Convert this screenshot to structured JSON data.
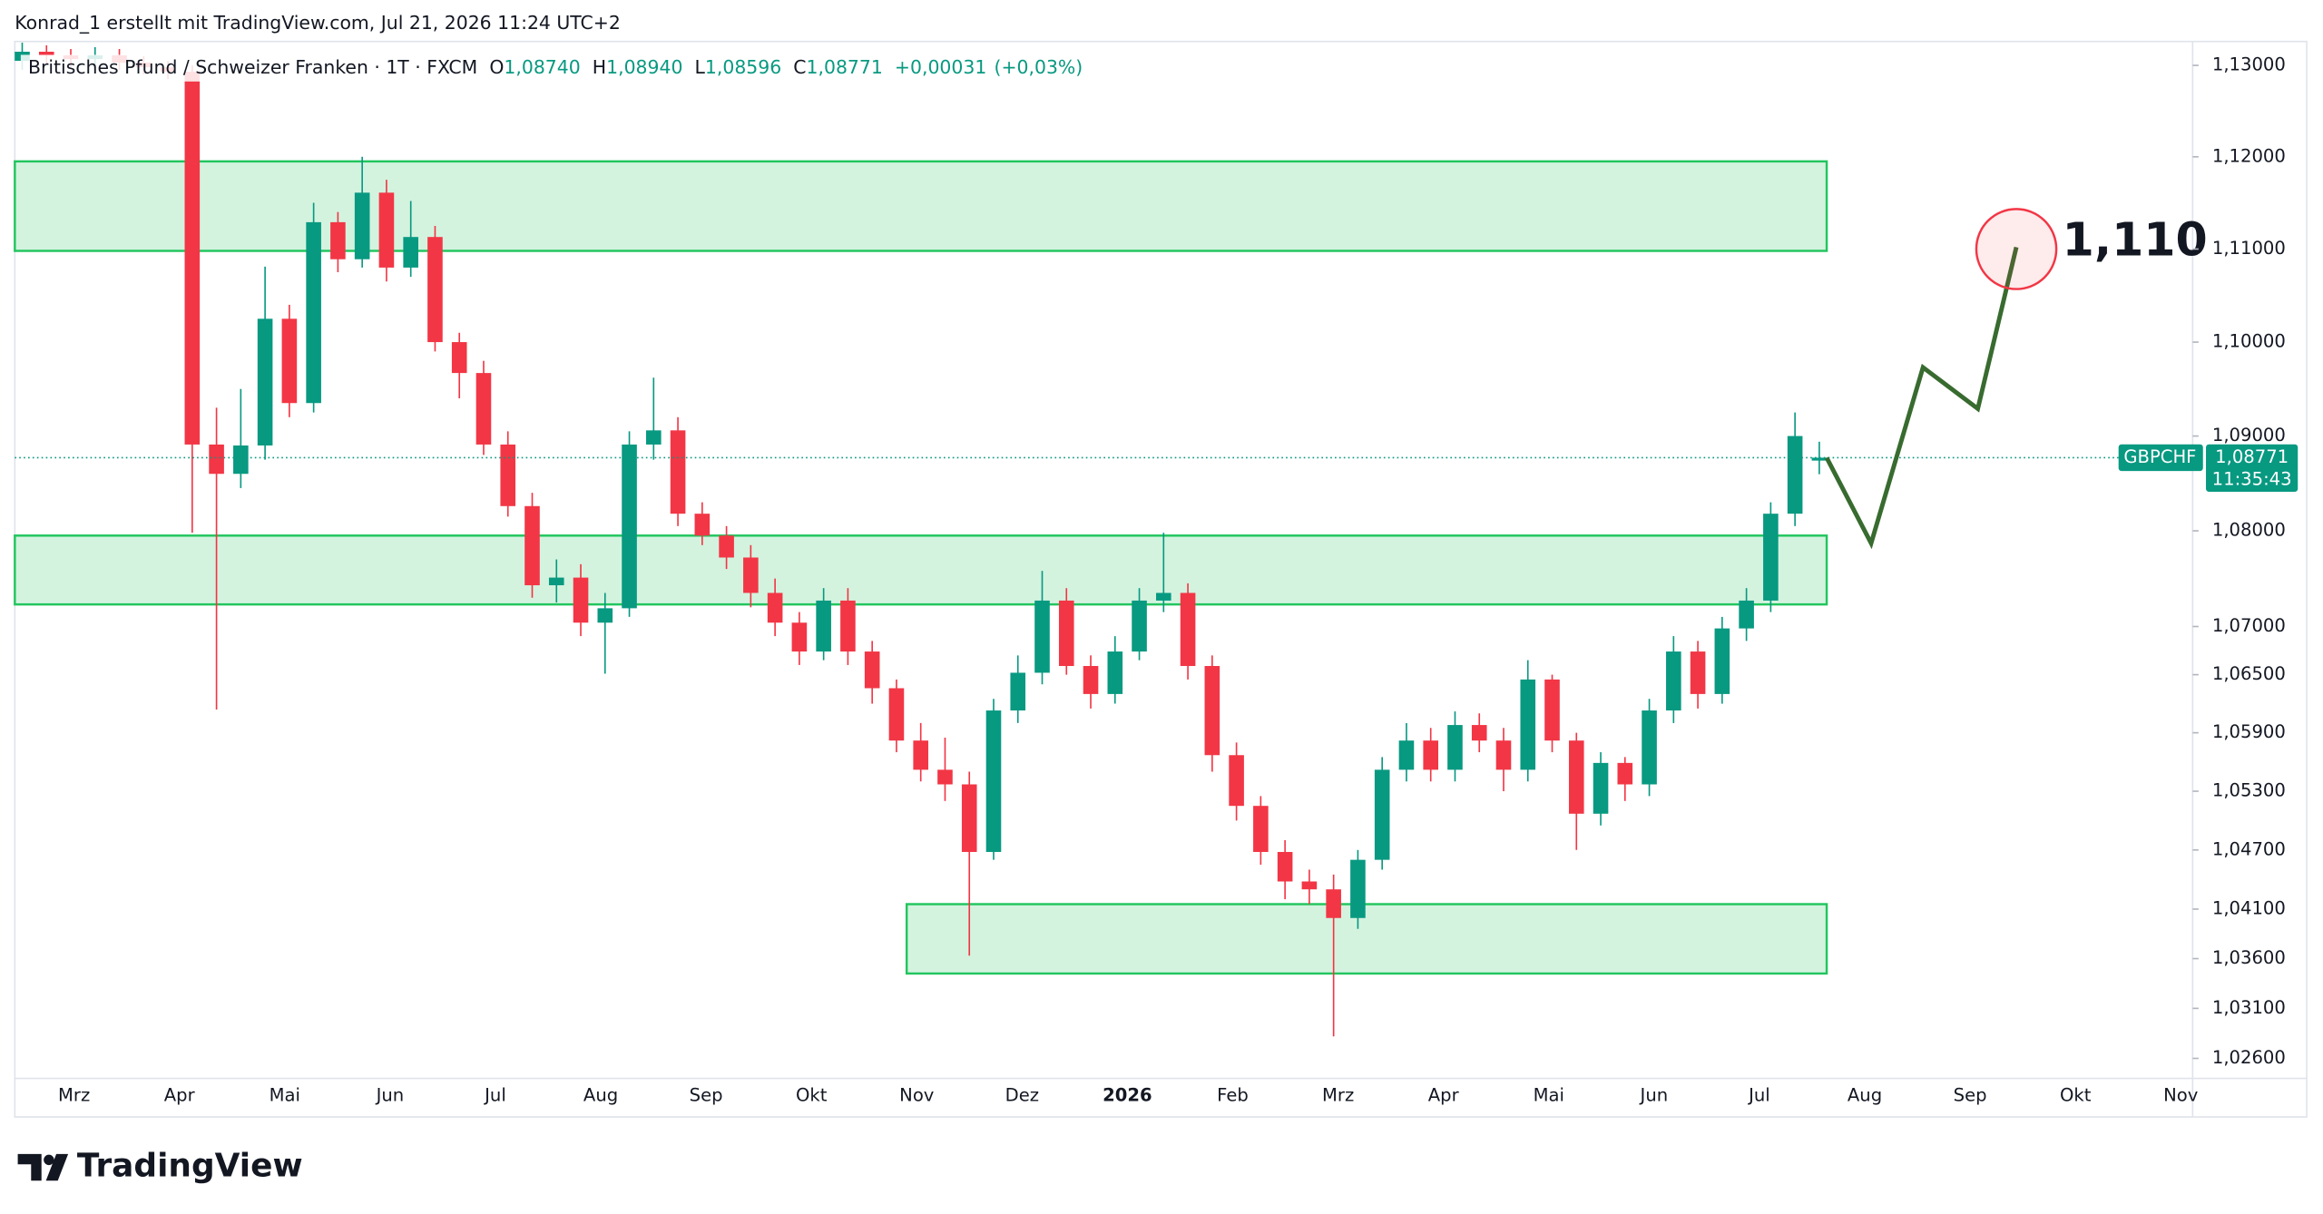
{
  "header": "Konrad_1 erstellt mit TradingView.com, Jul 21, 2026 11:24 UTC+2",
  "brand": "TradingView",
  "chart_data": {
    "type": "candlestick",
    "symbol_line": "Britisches Pfund / Schweizer Franken · 1T · FXCM",
    "ohlc_prefixes": [
      "O",
      "H",
      "L",
      "C"
    ],
    "ohlc_labels": [
      "1,08740",
      "1,08940",
      "1,08596",
      "1,08771"
    ],
    "change": {
      "value": 0.00031,
      "label": "+0,00031"
    },
    "change_pct": {
      "value": 0.03,
      "label": "(+0,03%)"
    },
    "ticker": "GBPCHF",
    "countdown": "11:35:43",
    "up_color": "#089981",
    "down_color": "#f23645",
    "log_scale": true,
    "ylim": [
      1.024,
      1.1323
    ],
    "yticks": [
      {
        "value": 1.13,
        "label": "1,13000"
      },
      {
        "value": 1.12,
        "label": "1,12000"
      },
      {
        "value": 1.11,
        "label": "1,11000"
      },
      {
        "value": 1.1,
        "label": "1,10000"
      },
      {
        "value": 1.09,
        "label": "1,09000"
      },
      {
        "value": 1.08,
        "label": "1,08000"
      },
      {
        "value": 1.07,
        "label": "1,07000"
      },
      {
        "value": 1.065,
        "label": "1,06500"
      },
      {
        "value": 1.059,
        "label": "1,05900"
      },
      {
        "value": 1.053,
        "label": "1,05300"
      },
      {
        "value": 1.047,
        "label": "1,04700"
      },
      {
        "value": 1.041,
        "label": "1,04100"
      },
      {
        "value": 1.036,
        "label": "1,03600"
      },
      {
        "value": 1.031,
        "label": "1,03100"
      },
      {
        "value": 1.026,
        "label": "1,02600"
      }
    ],
    "xtick_labels": [
      "Mrz",
      "Apr",
      "Mai",
      "Jun",
      "Jul",
      "Aug",
      "Sep",
      "Okt",
      "Nov",
      "Dez",
      "2026",
      "Feb",
      "Mrz",
      "Apr",
      "Mai",
      "Jun",
      "Jul",
      "Aug",
      "Sep",
      "Okt",
      "Nov"
    ],
    "open": [
      1.1305,
      1.1315,
      1.1311,
      1.1307,
      1.1311,
      1.1303,
      1.1298,
      1.1293,
      1.0891,
      1.086,
      1.089,
      1.1025,
      1.0935,
      1.1129,
      1.1089,
      1.1161,
      1.108,
      1.1113,
      1.1,
      1.0967,
      1.0891,
      1.0826,
      1.0743,
      1.0751,
      1.0704,
      1.0719,
      1.0891,
      1.0906,
      1.0818,
      1.0795,
      1.0772,
      1.0735,
      1.0704,
      1.0674,
      1.0727,
      1.0674,
      1.0636,
      1.0582,
      1.0552,
      1.0537,
      1.0468,
      1.0613,
      1.0652,
      1.0727,
      1.0659,
      1.063,
      1.0674,
      1.0727,
      1.0735,
      1.0659,
      1.0567,
      1.0515,
      1.0468,
      1.0438,
      1.043,
      1.0401,
      1.046,
      1.0552,
      1.0582,
      1.0552,
      1.0598,
      1.0582,
      1.0552,
      1.0645,
      1.0582,
      1.0507,
      1.0559,
      1.0537,
      1.0613,
      1.0674,
      1.063,
      1.0698,
      1.0727,
      1.0818,
      1.0874
    ],
    "high": [
      1.1325,
      1.1322,
      1.1318,
      1.132,
      1.1318,
      1.131,
      1.1305,
      1.13,
      1.093,
      1.095,
      1.1081,
      1.104,
      1.115,
      1.114,
      1.12,
      1.1175,
      1.1152,
      1.1125,
      1.101,
      1.098,
      1.0905,
      1.084,
      1.077,
      1.0765,
      1.0735,
      1.0905,
      1.0962,
      1.092,
      1.083,
      1.0805,
      1.0785,
      1.075,
      1.0715,
      1.074,
      1.074,
      1.0685,
      1.0645,
      1.06,
      1.0585,
      1.055,
      1.0625,
      1.067,
      1.0758,
      1.074,
      1.067,
      1.069,
      1.074,
      1.0798,
      1.0745,
      1.067,
      1.058,
      1.0525,
      1.048,
      1.045,
      1.0445,
      1.047,
      1.0565,
      1.06,
      1.0595,
      1.0612,
      1.061,
      1.0595,
      1.0665,
      1.065,
      1.059,
      1.057,
      1.0565,
      1.0625,
      1.069,
      1.0685,
      1.071,
      1.074,
      1.083,
      1.0925,
      1.0894
    ],
    "low": [
      1.1295,
      1.1302,
      1.1298,
      1.1297,
      1.1295,
      1.129,
      1.1285,
      1.0798,
      1.0614,
      1.0845,
      1.0875,
      1.092,
      1.0925,
      1.1075,
      1.108,
      1.1065,
      1.107,
      1.099,
      1.094,
      1.088,
      1.0815,
      1.073,
      1.0725,
      1.069,
      1.0651,
      1.071,
      1.0875,
      1.0805,
      1.0785,
      1.076,
      1.072,
      1.069,
      1.066,
      1.0665,
      1.066,
      1.062,
      1.057,
      1.054,
      1.052,
      1.0363,
      1.046,
      1.06,
      1.064,
      1.065,
      1.0615,
      1.062,
      1.0665,
      1.0715,
      1.0645,
      1.055,
      1.05,
      1.0455,
      1.042,
      1.0415,
      1.0282,
      1.039,
      1.045,
      1.054,
      1.054,
      1.054,
      1.057,
      1.053,
      1.054,
      1.057,
      1.047,
      1.0495,
      1.052,
      1.0525,
      1.06,
      1.0615,
      1.062,
      1.0685,
      1.0715,
      1.0805,
      1.08596
    ],
    "close": [
      1.1315,
      1.1311,
      1.1307,
      1.1311,
      1.1303,
      1.1298,
      1.1293,
      1.0891,
      1.086,
      1.089,
      1.1025,
      1.0935,
      1.1129,
      1.1089,
      1.1161,
      1.108,
      1.1113,
      1.1,
      1.0967,
      1.0891,
      1.0826,
      1.0743,
      1.0751,
      1.0704,
      1.0719,
      1.0891,
      1.0906,
      1.0818,
      1.0795,
      1.0772,
      1.0735,
      1.0704,
      1.0674,
      1.0727,
      1.0674,
      1.0636,
      1.0582,
      1.0552,
      1.0537,
      1.0468,
      1.0613,
      1.0652,
      1.0727,
      1.0659,
      1.063,
      1.0674,
      1.0727,
      1.0735,
      1.0659,
      1.0567,
      1.0515,
      1.0468,
      1.0438,
      1.043,
      1.0401,
      1.046,
      1.0552,
      1.0582,
      1.0552,
      1.0598,
      1.0582,
      1.0552,
      1.0645,
      1.0582,
      1.0507,
      1.0559,
      1.0537,
      1.0613,
      1.0674,
      1.063,
      1.0698,
      1.0727,
      1.0818,
      1.09,
      1.08771
    ],
    "zones": [
      {
        "top": 1.1195,
        "bottom": 1.1098
      },
      {
        "top": 1.0795,
        "bottom": 1.0723
      },
      {
        "top": 1.0415,
        "bottom": 1.0345
      }
    ],
    "zone_color": "#22c55e",
    "projection": [
      1.0877,
      1.0787,
      1.0973,
      1.0929,
      1.1102
    ],
    "projection_color": "#386b2f",
    "target": {
      "value": 1.11,
      "label": "1,110"
    }
  }
}
